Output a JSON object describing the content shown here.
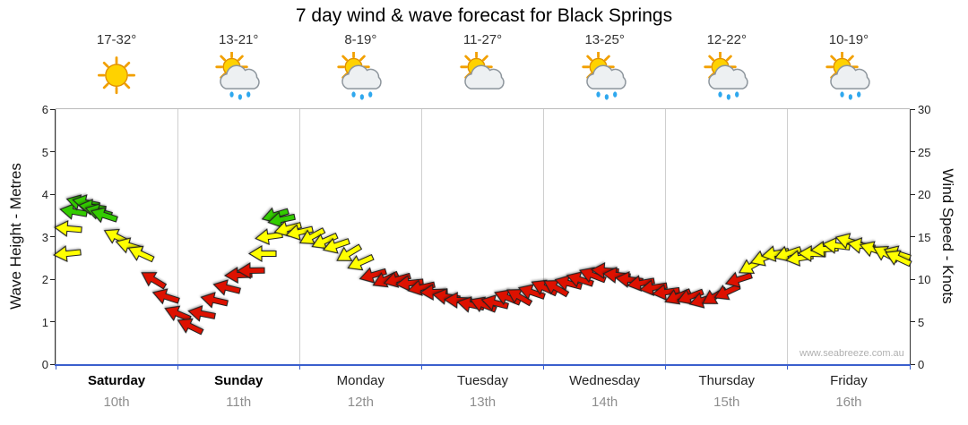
{
  "title": "7 day wind & wave forecast for Black Springs",
  "watermark": "www.seabreeze.com.au",
  "axes": {
    "left_label": "Wave Height - Metres",
    "right_label": "Wind Speed - Knots",
    "left_ticks": [
      "0",
      "1",
      "2",
      "3",
      "4",
      "5",
      "6"
    ],
    "right_ticks": [
      "0",
      "5",
      "10",
      "15",
      "20",
      "25",
      "30"
    ]
  },
  "days": [
    {
      "name": "Saturday",
      "date": "10th",
      "temp": "17-32°",
      "icon": "sunny",
      "bold": true
    },
    {
      "name": "Sunday",
      "date": "11th",
      "temp": "13-21°",
      "icon": "showers",
      "bold": true
    },
    {
      "name": "Monday",
      "date": "12th",
      "temp": "8-19°",
      "icon": "showers",
      "bold": false
    },
    {
      "name": "Tuesday",
      "date": "13th",
      "temp": "11-27°",
      "icon": "partly",
      "bold": false
    },
    {
      "name": "Wednesday",
      "date": "14th",
      "temp": "13-25°",
      "icon": "showers",
      "bold": false
    },
    {
      "name": "Thursday",
      "date": "15th",
      "temp": "12-22°",
      "icon": "showers",
      "bold": false
    },
    {
      "name": "Friday",
      "date": "16th",
      "temp": "10-19°",
      "icon": "showers",
      "bold": false
    }
  ],
  "chart_data": {
    "type": "scatter",
    "title": "7 day wind & wave forecast for Black Springs",
    "x_unit": "days (0 = Saturday 10th .. 7 = end of Friday 16th)",
    "x_range": [
      0,
      7
    ],
    "grid": "vertical day gridlines only",
    "left_axis": {
      "label": "Wave Height - Metres",
      "range": [
        0,
        6
      ]
    },
    "right_axis": {
      "label": "Wind Speed - Knots",
      "range": [
        0,
        30
      ]
    },
    "series_note": "wind arrows plotted against right axis (knots); color = speed band; angle = wind direction glyph rotation in degrees (0 = pointing right)",
    "color_thresholds": {
      "green_min": 16.5,
      "red_max": 11.5
    },
    "colors": {
      "green": "#33cc00",
      "yellow": "#ffff00",
      "red": "#dd1100"
    },
    "arrows": [
      [
        0.0,
        13,
        174
      ],
      [
        0.1,
        16,
        185
      ],
      [
        0.15,
        18,
        190
      ],
      [
        0.2,
        19,
        196
      ],
      [
        0.25,
        19,
        192
      ],
      [
        0.3,
        18.5,
        188
      ],
      [
        0.35,
        18,
        195
      ],
      [
        0.4,
        17.5,
        198
      ],
      [
        0.5,
        15,
        207
      ],
      [
        0.6,
        14,
        197
      ],
      [
        0.7,
        13,
        205
      ],
      [
        0.8,
        10,
        211
      ],
      [
        0.9,
        8,
        198
      ],
      [
        1.0,
        6,
        203
      ],
      [
        1.1,
        4.5,
        206
      ],
      [
        1.2,
        6,
        191
      ],
      [
        1.3,
        7.5,
        193
      ],
      [
        1.4,
        9,
        194
      ],
      [
        1.5,
        10.5,
        178
      ],
      [
        1.6,
        11,
        179
      ],
      [
        1.7,
        13,
        180
      ],
      [
        1.75,
        15,
        172
      ],
      [
        1.8,
        17.5,
        163
      ],
      [
        1.85,
        17,
        168
      ],
      [
        1.9,
        16,
        165
      ],
      [
        2.0,
        15.5,
        167
      ],
      [
        2.1,
        15,
        152
      ],
      [
        2.2,
        14.5,
        156
      ],
      [
        2.3,
        14,
        161
      ],
      [
        2.4,
        13,
        149
      ],
      [
        2.5,
        12,
        156
      ],
      [
        2.6,
        10.5,
        164
      ],
      [
        2.7,
        10,
        155
      ],
      [
        2.8,
        10,
        164
      ],
      [
        2.9,
        9.5,
        174
      ],
      [
        3.0,
        9,
        167
      ],
      [
        3.1,
        8.5,
        178
      ],
      [
        3.2,
        8,
        189
      ],
      [
        3.3,
        7.5,
        182
      ],
      [
        3.4,
        7,
        192
      ],
      [
        3.5,
        7,
        202
      ],
      [
        3.6,
        7.2,
        194
      ],
      [
        3.7,
        7.8,
        202
      ],
      [
        3.8,
        8,
        210
      ],
      [
        3.9,
        8.5,
        199
      ],
      [
        4.0,
        9,
        205
      ],
      [
        4.1,
        9,
        210
      ],
      [
        4.2,
        9.5,
        195
      ],
      [
        4.3,
        10,
        198
      ],
      [
        4.4,
        10.5,
        201
      ],
      [
        4.5,
        11,
        184
      ],
      [
        4.6,
        10.5,
        186
      ],
      [
        4.7,
        10,
        187
      ],
      [
        4.8,
        9.5,
        170
      ],
      [
        4.9,
        9,
        171
      ],
      [
        5.0,
        8.5,
        172
      ],
      [
        5.1,
        8,
        157
      ],
      [
        5.2,
        8,
        159
      ],
      [
        5.3,
        7.5,
        163
      ],
      [
        5.4,
        8,
        149
      ],
      [
        5.5,
        8.5,
        155
      ],
      [
        5.6,
        10,
        162
      ],
      [
        5.7,
        11.5,
        151
      ],
      [
        5.8,
        12.5,
        160
      ],
      [
        5.9,
        13,
        169
      ],
      [
        6.0,
        13,
        161
      ],
      [
        6.1,
        12.5,
        171
      ],
      [
        6.2,
        13,
        182
      ],
      [
        6.3,
        13.5,
        176
      ],
      [
        6.4,
        14,
        187
      ],
      [
        6.5,
        14.5,
        197
      ],
      [
        6.6,
        14,
        190
      ],
      [
        6.7,
        13.5,
        199
      ],
      [
        6.8,
        13,
        208
      ],
      [
        6.9,
        13,
        198
      ],
      [
        7.0,
        12.5,
        205
      ]
    ]
  }
}
